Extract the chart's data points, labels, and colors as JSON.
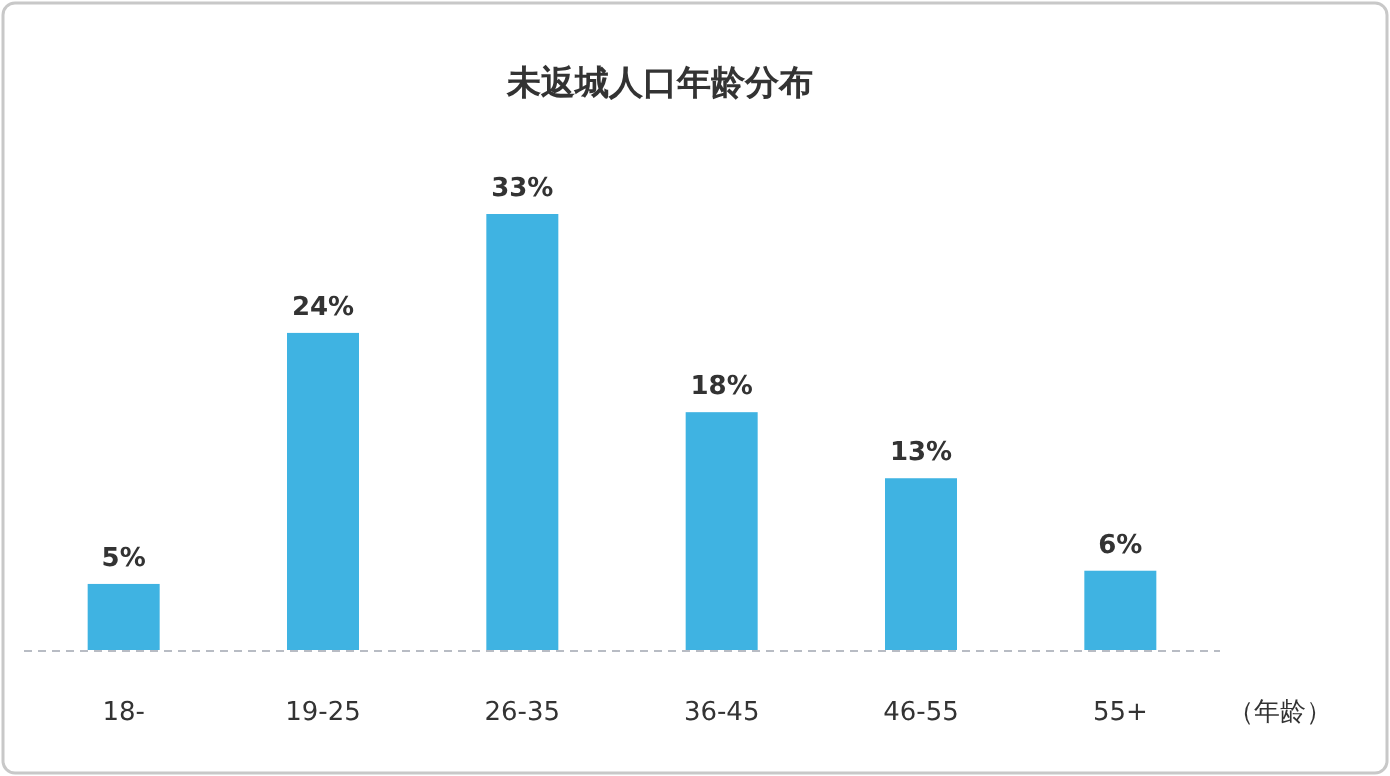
{
  "chart_data": {
    "type": "bar",
    "title": "未返城人口年龄分布",
    "xlabel": "（年龄）",
    "categories": [
      "18-",
      "19-25",
      "26-35",
      "36-45",
      "46-55",
      "55+"
    ],
    "values": [
      5,
      24,
      33,
      18,
      13,
      6
    ],
    "color": "#3fb3e2",
    "data_labels": true,
    "value_labels": [
      "5%",
      "24%",
      "33%",
      "18%",
      "13%",
      "6%"
    ]
  }
}
